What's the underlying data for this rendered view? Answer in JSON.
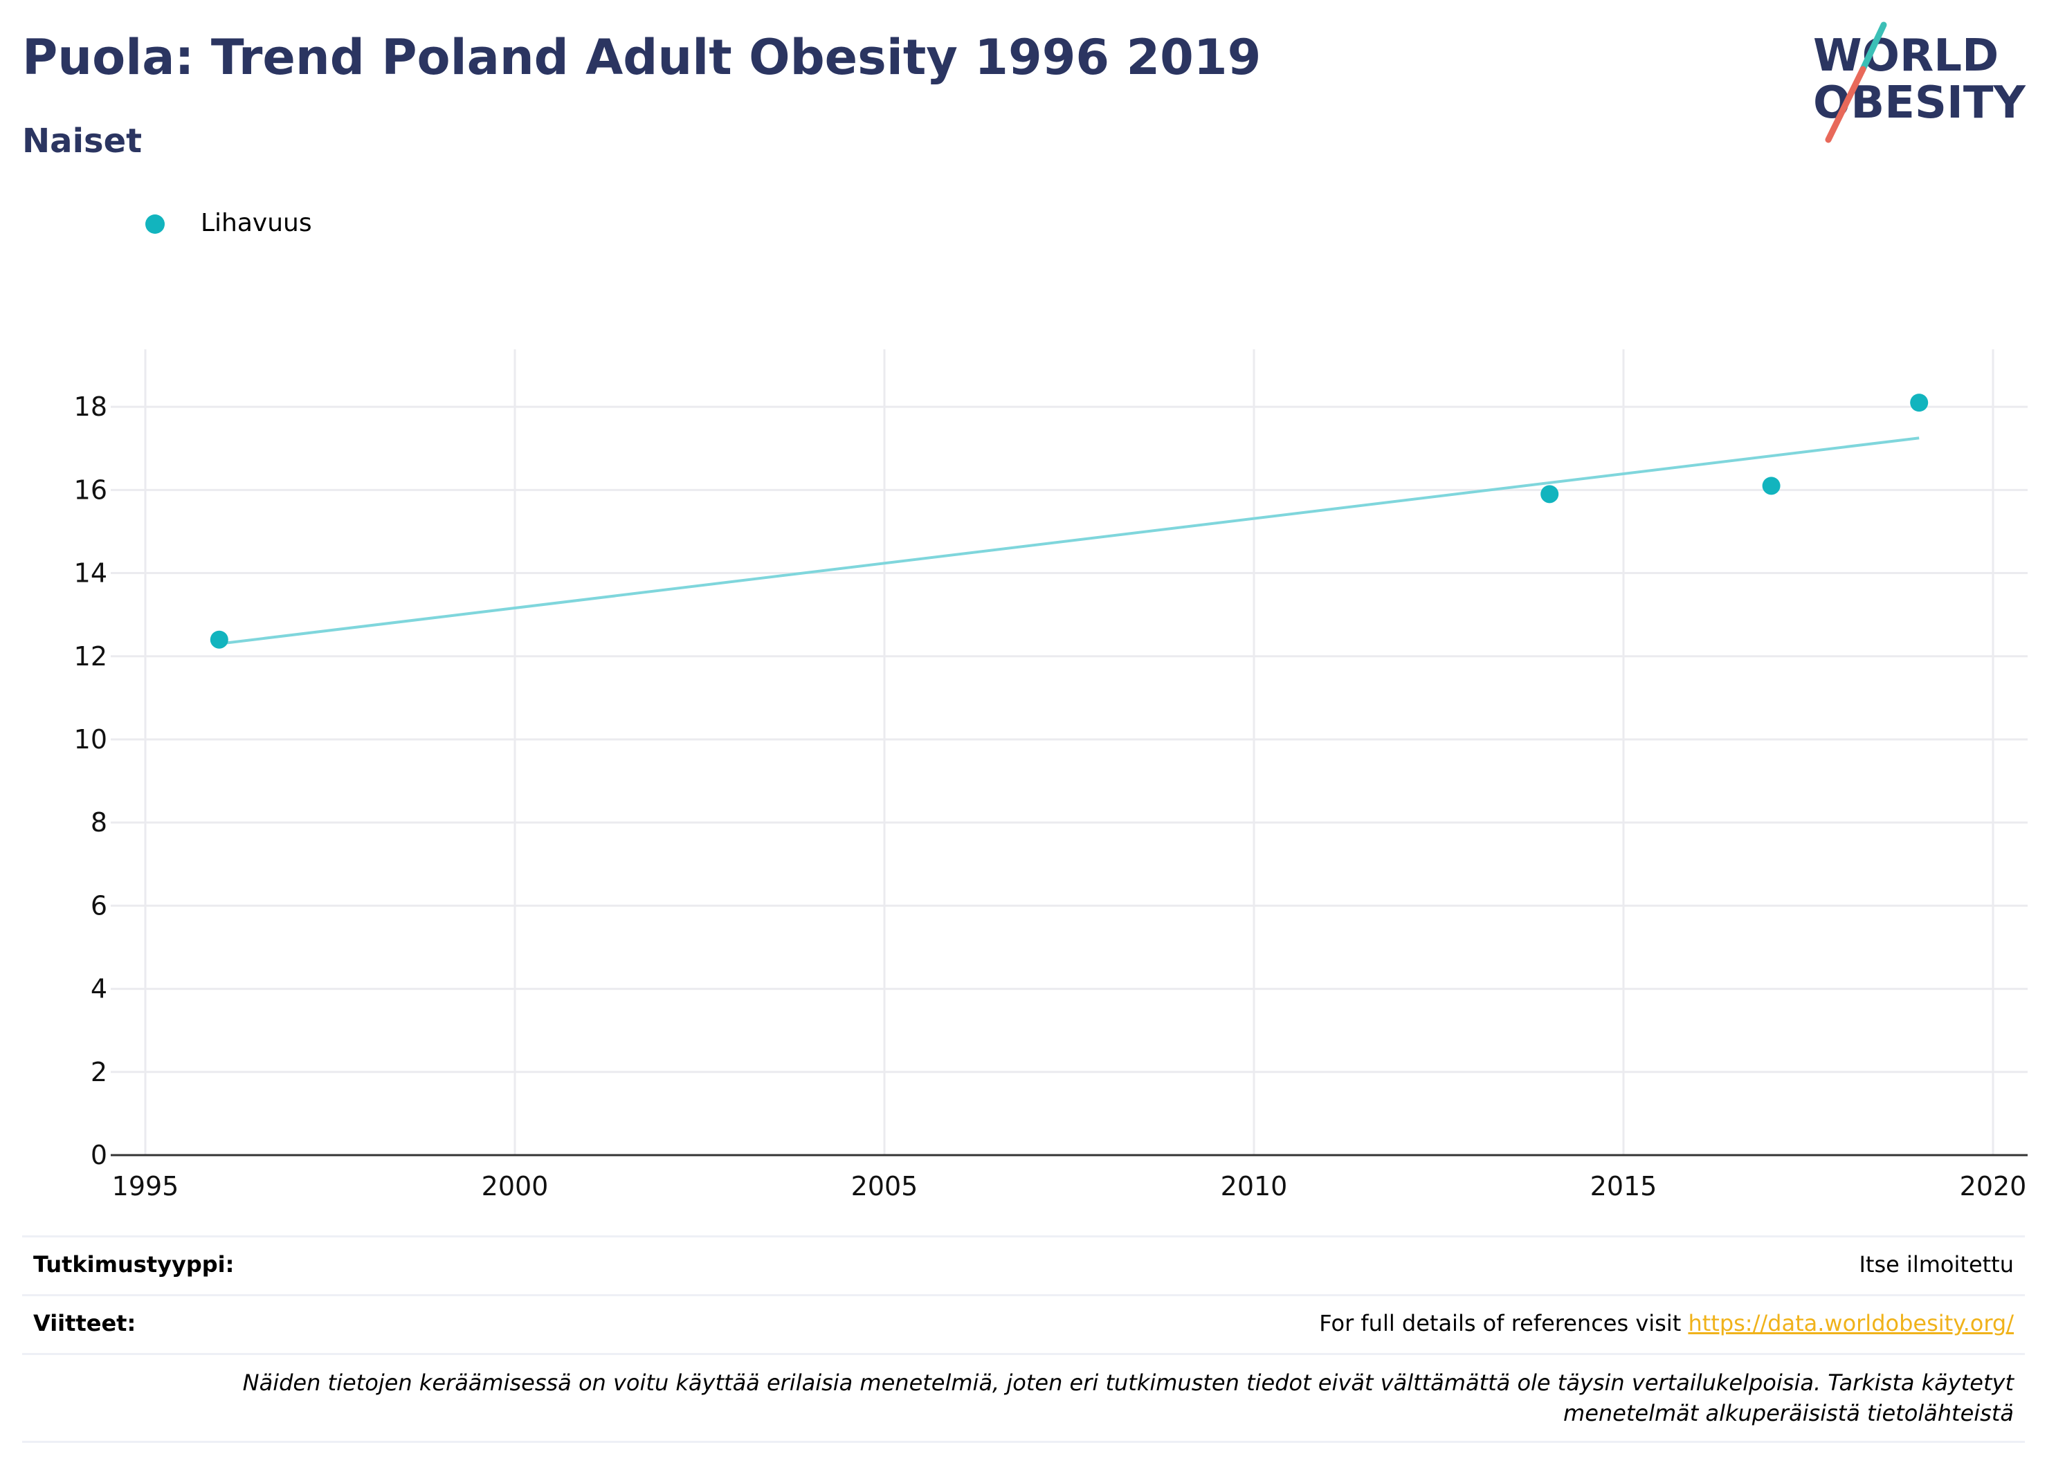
{
  "header": {
    "title": "Puola: Trend Poland Adult Obesity 1996 2019",
    "subtitle": "Naiset"
  },
  "logo": {
    "line1": "WORLD",
    "line2": "OBESITY"
  },
  "colors": {
    "title": "#2b3561",
    "series": "#12b4be",
    "trendline": "#7fd6dc",
    "link": "#f0b21a",
    "logo_teal": "#3bbfb6",
    "logo_coral": "#e8695a"
  },
  "chart_data": {
    "type": "scatter",
    "series": [
      {
        "name": "Lihavuus",
        "x": [
          1996,
          2014,
          2017,
          2019
        ],
        "y": [
          12.4,
          15.9,
          16.1,
          18.1
        ]
      }
    ],
    "trendline": {
      "x": [
        1996,
        2019
      ],
      "y": [
        12.3,
        17.25
      ]
    },
    "xlim": [
      1995,
      2020
    ],
    "ylim": [
      0,
      19.3
    ],
    "xticks": [
      1995,
      2000,
      2005,
      2010,
      2015,
      2020
    ],
    "yticks": [
      0,
      2,
      4,
      6,
      8,
      10,
      12,
      14,
      16,
      18
    ],
    "grid": true,
    "legend": "top-left",
    "xlabel": "",
    "ylabel": ""
  },
  "info": {
    "study_type_label": "Tutkimustyyppi:",
    "study_type_value": "Itse ilmoitettu",
    "references_label": "Viitteet:",
    "references_text": "For full details of references visit ",
    "references_link": "https://data.worldobesity.org/",
    "note": "Näiden tietojen keräämisessä on voitu käyttää erilaisia menetelmiä, joten eri tutkimusten tiedot eivät välttämättä ole täysin vertailukelpoisia. Tarkista käytetyt menetelmät alkuperäisistä tietolähteistä"
  }
}
